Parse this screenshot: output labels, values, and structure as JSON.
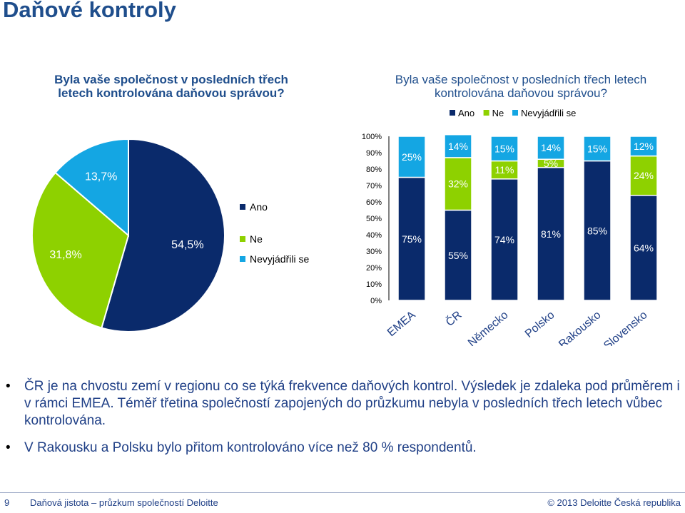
{
  "page": {
    "title": "Daňové kontroly"
  },
  "left_chart": {
    "title": "Byla vaše společnost v posledních třech letech kontrolována daňovou správou?"
  },
  "right_chart": {
    "title": "Byla vaše společnost v posledních třech letech kontrolována daňovou správou?"
  },
  "colors": {
    "ano": "#0a2a6b",
    "ne": "#8ed100",
    "nevyjadrili": "#14a6e3"
  },
  "chart_data": [
    {
      "type": "pie",
      "title": "Byla vaše společnost v posledních třech letech kontrolována daňovou správou?",
      "slices": [
        {
          "name": "Ano",
          "value": 54.5,
          "label": "54,5%",
          "color": "#0a2a6b"
        },
        {
          "name": "Ne",
          "value": 31.8,
          "label": "31,8%",
          "color": "#8ed100"
        },
        {
          "name": "Nevyjádřili se",
          "value": 13.7,
          "label": "13,7%",
          "color": "#14a6e3"
        }
      ],
      "legend": [
        "Ano",
        "Ne",
        "Nevyjádřili se"
      ],
      "legend_position": "right"
    },
    {
      "type": "bar",
      "stacked": true,
      "title": "Byla vaše společnost v posledních třech letech kontrolována daňovou správou?",
      "categories": [
        "EMEA",
        "ČR",
        "Německo",
        "Polsko",
        "Rakousko",
        "Slovensko"
      ],
      "series": [
        {
          "name": "Ano",
          "values": [
            75,
            55,
            74,
            81,
            85,
            64
          ],
          "labels": [
            "75%",
            "55%",
            "74%",
            "81%",
            "85%",
            "64%"
          ],
          "color": "#0a2a6b"
        },
        {
          "name": "Ne",
          "values": [
            0,
            32,
            11,
            5,
            0,
            24
          ],
          "labels": [
            "",
            "32%",
            "11%",
            "5%",
            "",
            "24%"
          ],
          "color": "#8ed100"
        },
        {
          "name": "Nevyjádřili se",
          "values": [
            25,
            14,
            15,
            14,
            15,
            12
          ],
          "labels": [
            "25%",
            "14%",
            "15%",
            "14%",
            "15%",
            "12%"
          ],
          "color": "#14a6e3"
        }
      ],
      "y_ticks": [
        "0%",
        "10%",
        "20%",
        "30%",
        "40%",
        "50%",
        "60%",
        "70%",
        "80%",
        "90%",
        "100%"
      ],
      "ylim": [
        0,
        100
      ],
      "grid": false,
      "legend_position": "top"
    }
  ],
  "bullets": [
    "ČR je na chvostu zemí v regionu co se  týká frekvence daňových kontrol. Výsledek je zdaleka pod průměrem i v rámci EMEA. Téměř třetina společností zapojených do průzkumu nebyla v posledních třech letech vůbec kontrolována.",
    "V Rakousku a Polsku bylo přitom kontrolováno více než 80 % respondentů."
  ],
  "footer": {
    "page_number": "9",
    "left_text": "Daňová jistota – průzkum společností Deloitte",
    "right_text": "© 2013 Deloitte Česká republika"
  }
}
